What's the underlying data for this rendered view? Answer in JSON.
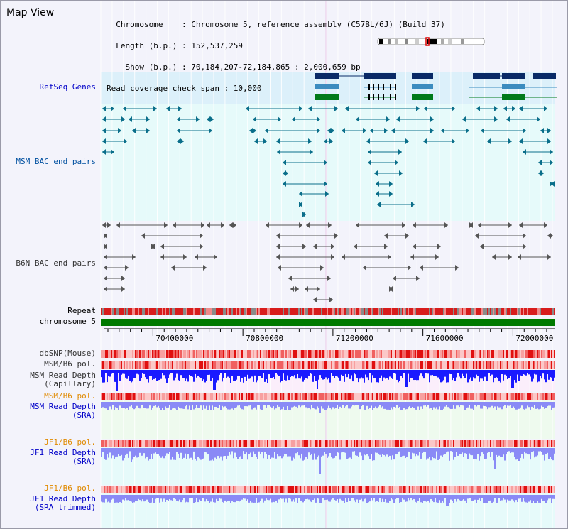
{
  "page": {
    "title": "Map View",
    "info_lines": [
      "  Chromosome    : Chromosome 5, reference assembly (C57BL/6J) (Build 37)",
      "  Length (b.p.) : 152,537,259",
      "    Show (b.p.) : 70,184,207-72,184,865 : 2,000,659 bp",
      "Read coverage check span : 10,000"
    ]
  },
  "tracks": {
    "refseq": "RefSeq Genes",
    "msm_bac": "MSM BAC end pairs",
    "b6n_bac": "B6N BAC end pairs",
    "repeat": "Repeat",
    "chromosome": "chromosome 5",
    "dbsnp": "dbSNP(Mouse)",
    "msm_b6_pol_1": "MSM/B6 pol.",
    "msm_depth_cap": "MSM Read Depth\n(Capillary)",
    "msm_b6_pol_2": "MSM/B6 pol.",
    "msm_depth_sra": "MSM Read Depth\n(SRA)",
    "jf1_b6_pol_1": "JF1/B6 pol.",
    "jf1_depth_sra": "JF1 Read Depth\n(SRA)",
    "jf1_b6_pol_2": "JF1/B6 pol.",
    "jf1_depth_trim": "JF1 Read Depth\n(SRA trimmed)"
  },
  "axis": {
    "ticks": [
      "70400000",
      "70800000",
      "71200000",
      "71600000",
      "72000000"
    ],
    "tick_values": [
      70400000,
      70800000,
      71200000,
      71600000,
      72000000
    ],
    "range": [
      70184207,
      72184865
    ]
  },
  "colors": {
    "msm_label": "#0050a0",
    "orange_label": "#e08a00",
    "blue_label": "#0000c8",
    "gray_label": "#333333",
    "gene_dark": "#0a2a66",
    "gene_mid": "#3c8cbf",
    "gene_green": "#007a1a",
    "bac_teal": "#0a6e8a",
    "bac_gray": "#555555",
    "chrom_green": "#007a00",
    "depth_blue": "#1a1aff",
    "depth_light": "#8a8af6"
  }
}
